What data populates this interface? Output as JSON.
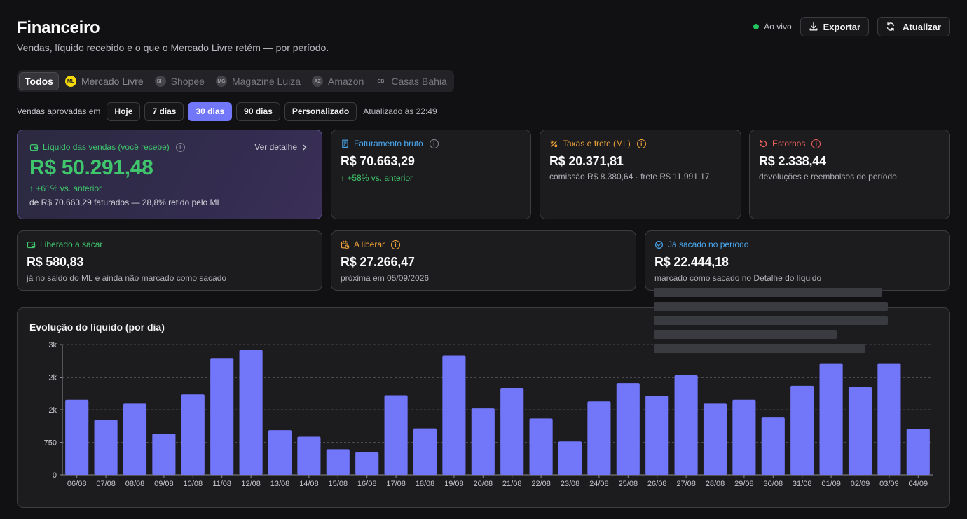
{
  "header": {
    "title": "Financeiro",
    "subtitle": "Vendas, líquido recebido e o que o Mercado Livre retém — por período.",
    "live": "Ao vivo",
    "export": "Exportar",
    "refresh": "Atualizar"
  },
  "marketplaces": [
    {
      "label": "Todos",
      "badge": ""
    },
    {
      "label": "Mercado Livre",
      "badge": "ML"
    },
    {
      "label": "Shopee",
      "badge": "SH"
    },
    {
      "label": "Magazine Luiza",
      "badge": "MG"
    },
    {
      "label": "Amazon",
      "badge": "AZ"
    },
    {
      "label": "Casas Bahia",
      "badge": "CB"
    }
  ],
  "period": {
    "label": "Vendas aprovadas em",
    "options": [
      "Hoje",
      "7 dias",
      "30 dias",
      "90 dias",
      "Personalizado"
    ],
    "selected": "30 dias",
    "updated": "Atualizado às 22:49"
  },
  "cards": {
    "liquido": {
      "title": "Líquido das vendas (você recebe)",
      "value": "R$ 50.291,48",
      "delta": "↑ +61% vs. anterior",
      "desc": "de R$ 70.663,29 faturados — 28,8% retido pelo ML",
      "link": "Ver detalhe"
    },
    "faturamento": {
      "title": "Faturamento bruto",
      "value": "R$ 70.663,29",
      "delta": "↑ +58% vs. anterior"
    },
    "taxas": {
      "title": "Taxas e frete (ML)",
      "value": "R$ 20.371,81",
      "desc": "comissão R$ 8.380,64 · frete R$ 11.991,17"
    },
    "estornos": {
      "title": "Estornos",
      "value": "R$ 2.338,44",
      "desc": "devoluções e reembolsos do período"
    },
    "liberado": {
      "title": "Liberado a sacar",
      "value": "R$ 580,83",
      "desc": "já no saldo do ML e ainda não marcado como sacado"
    },
    "aliberar": {
      "title": "A liberar",
      "value": "R$ 27.266,47",
      "desc": "próxima em 05/09/2026"
    },
    "sacado": {
      "title": "Já sacado no período",
      "value": "R$ 22.444,18",
      "desc": "marcado como sacado no Detalhe do líquido"
    }
  },
  "colors": {
    "accent": "#7276f8",
    "green": "#3fc66c",
    "blue": "#4aa8f0",
    "orange": "#f2a53a",
    "red": "#f0625c",
    "bar": "#7276f8"
  },
  "chart_data": {
    "type": "bar",
    "title": "Evolução do líquido (por dia)",
    "categories": [
      "06/08",
      "07/08",
      "08/08",
      "09/08",
      "10/08",
      "11/08",
      "12/08",
      "13/08",
      "14/08",
      "15/08",
      "16/08",
      "17/08",
      "18/08",
      "19/08",
      "20/08",
      "21/08",
      "22/08",
      "23/08",
      "24/08",
      "25/08",
      "26/08",
      "27/08",
      "28/08",
      "29/08",
      "30/08",
      "31/08",
      "01/09",
      "02/09",
      "03/09",
      "04/09"
    ],
    "values": [
      1730,
      1270,
      1640,
      950,
      1850,
      2690,
      2880,
      1030,
      880,
      590,
      520,
      1830,
      1070,
      2750,
      1530,
      2000,
      1300,
      770,
      1690,
      2110,
      1820,
      2290,
      1640,
      1730,
      1320,
      2050,
      2570,
      2020,
      2570,
      1060
    ],
    "ytick_labels": [
      "0",
      "750",
      "2k",
      "2k",
      "3k"
    ],
    "ylim": [
      0,
      3000
    ],
    "grid": true
  }
}
